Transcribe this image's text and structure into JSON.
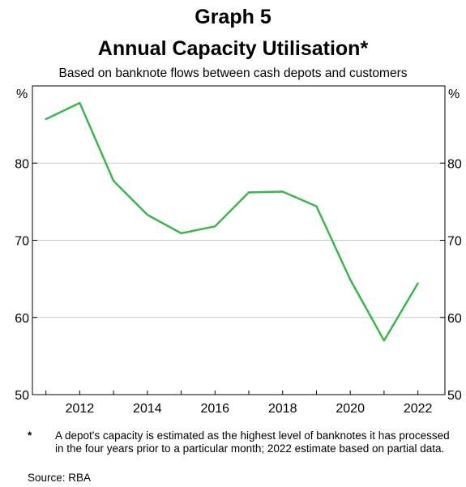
{
  "chart_data": {
    "type": "line",
    "title_line1": "Graph 5",
    "title_line2": "Annual Capacity Utilisation*",
    "subtitle": "Based on banknote flows between cash depots and customers",
    "y_unit_left": "%",
    "y_unit_right": "%",
    "ylim": [
      50,
      90
    ],
    "yticks": [
      50,
      60,
      70,
      80
    ],
    "xlim": [
      2010.6,
      2022.8
    ],
    "xticks": [
      2012,
      2014,
      2016,
      2018,
      2020,
      2022
    ],
    "grid": true,
    "series": [
      {
        "color": "#3cb54a",
        "x": [
          2011,
          2012,
          2013,
          2014,
          2015,
          2016,
          2017,
          2018,
          2019,
          2020,
          2021,
          2022
        ],
        "y": [
          85.7,
          87.8,
          77.7,
          73.3,
          70.9,
          71.8,
          76.2,
          76.3,
          74.4,
          64.9,
          57.0,
          64.4
        ]
      }
    ],
    "footnote_marker": "*",
    "footnote": "A depot's capacity is estimated as the highest level of banknotes it has processed in the four years prior to a particular month; 2022 estimate based on partial data.",
    "source": "Source:   RBA"
  }
}
